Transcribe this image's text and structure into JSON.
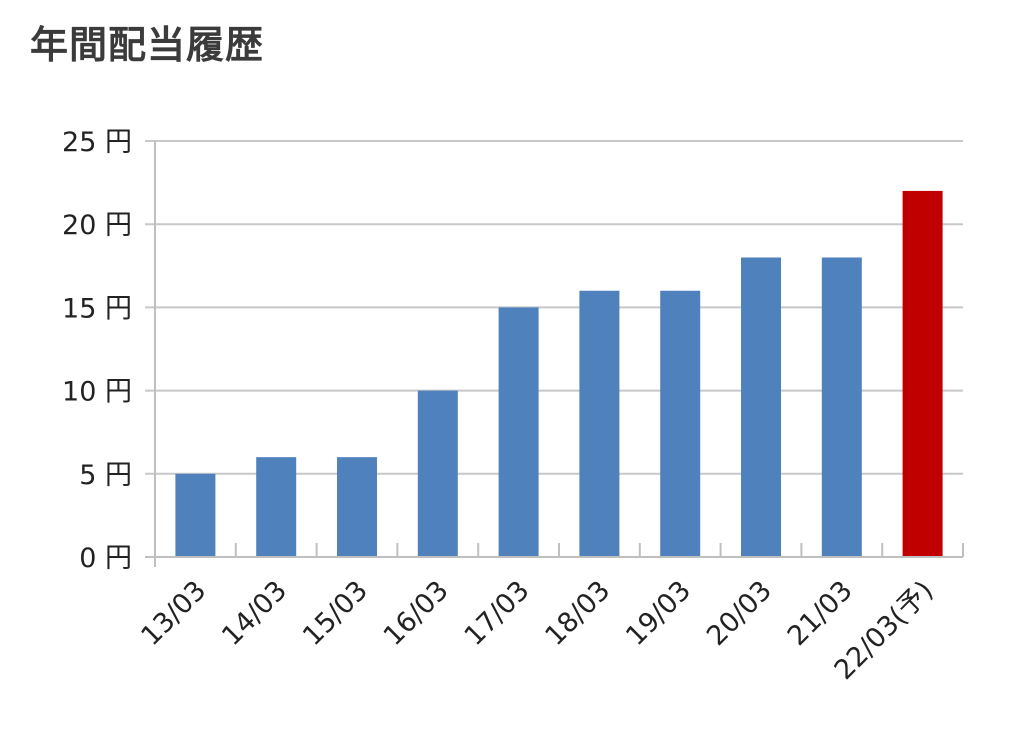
{
  "title": "年間配当履歴",
  "colors": {
    "bar": "#4f81bd",
    "highlight": "#c00000",
    "grid": "#c8c8c8",
    "axis": "#bfbfbf",
    "text": "#222222"
  },
  "chart_data": {
    "type": "bar",
    "title": "年間配当履歴",
    "xlabel": "",
    "ylabel": "",
    "ylim": [
      0,
      25
    ],
    "y_ticks": [
      0,
      5,
      10,
      15,
      20,
      25
    ],
    "y_tick_suffix": " 円",
    "grid": true,
    "legend": "none",
    "categories": [
      "13/03",
      "14/03",
      "15/03",
      "16/03",
      "17/03",
      "18/03",
      "19/03",
      "20/03",
      "21/03",
      "22/03(予)"
    ],
    "values": [
      5,
      6,
      6,
      10,
      15,
      16,
      16,
      18,
      18,
      22
    ],
    "highlight_index": 9
  }
}
